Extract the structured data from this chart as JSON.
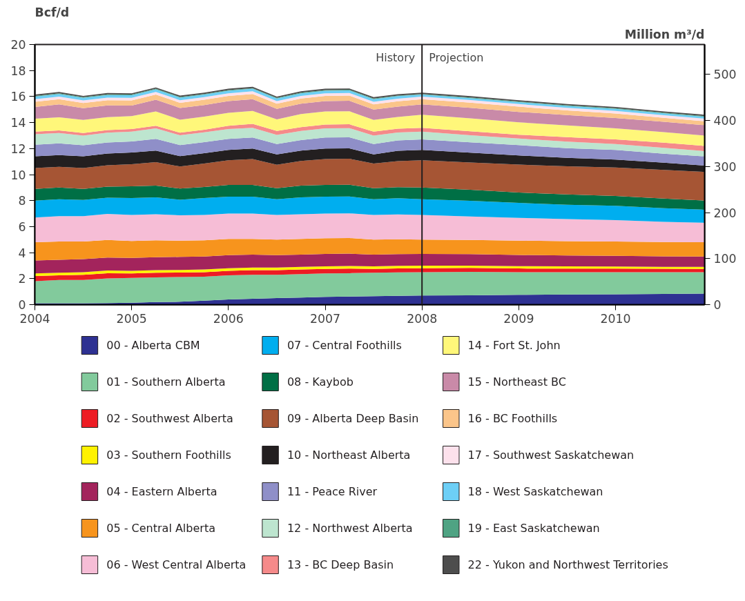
{
  "chart_data": {
    "type": "area",
    "stacked": true,
    "ylabel": "Bcf/d",
    "y2label": "Million m³/d",
    "x": [
      2004,
      2004.25,
      2004.5,
      2004.75,
      2005,
      2005.25,
      2005.5,
      2005.75,
      2006,
      2006.25,
      2006.5,
      2006.75,
      2007,
      2007.25,
      2007.5,
      2007.75,
      2008,
      2008.5,
      2009,
      2009.5,
      2010,
      2010.5,
      2010.92
    ],
    "xlim": [
      2004,
      2010.92
    ],
    "xticks": [
      2004,
      2005,
      2006,
      2007,
      2008,
      2009,
      2010
    ],
    "ylim": [
      0,
      20
    ],
    "yticks": [
      0,
      2,
      4,
      6,
      8,
      10,
      12,
      14,
      16,
      18,
      20
    ],
    "y2lim": [
      0,
      565
    ],
    "y2ticks": [
      0,
      100,
      200,
      300,
      400,
      500
    ],
    "legend": "bottom",
    "ref_lines": [
      {
        "axis": "x",
        "value": 2008,
        "color": "#231f20"
      }
    ],
    "annotations": [
      {
        "text": "History",
        "x": 2008,
        "y": 19
      },
      {
        "text": "Projection",
        "x": 2008,
        "y": 19
      }
    ],
    "series": [
      {
        "name": "00 - Alberta CBM",
        "color": "#2e3192",
        "values": [
          0.1,
          0.1,
          0.1,
          0.12,
          0.15,
          0.2,
          0.22,
          0.3,
          0.4,
          0.45,
          0.5,
          0.55,
          0.6,
          0.62,
          0.65,
          0.68,
          0.7,
          0.72,
          0.75,
          0.78,
          0.8,
          0.82,
          0.85
        ]
      },
      {
        "name": "01 - Southern Alberta",
        "color": "#82ca9c",
        "values": [
          1.7,
          1.8,
          1.8,
          1.9,
          1.9,
          1.9,
          1.9,
          1.85,
          1.85,
          1.85,
          1.8,
          1.8,
          1.8,
          1.8,
          1.8,
          1.8,
          1.8,
          1.8,
          1.75,
          1.72,
          1.7,
          1.68,
          1.65
        ]
      },
      {
        "name": "02 - Southwest Alberta",
        "color": "#ed1c24",
        "values": [
          0.4,
          0.35,
          0.4,
          0.4,
          0.35,
          0.35,
          0.35,
          0.35,
          0.35,
          0.35,
          0.35,
          0.35,
          0.35,
          0.35,
          0.3,
          0.3,
          0.3,
          0.3,
          0.28,
          0.27,
          0.27,
          0.26,
          0.25
        ]
      },
      {
        "name": "03 - Southern Foothills",
        "color": "#fff200",
        "values": [
          0.2,
          0.2,
          0.2,
          0.2,
          0.2,
          0.2,
          0.2,
          0.2,
          0.2,
          0.2,
          0.2,
          0.2,
          0.2,
          0.2,
          0.2,
          0.2,
          0.2,
          0.18,
          0.18,
          0.17,
          0.16,
          0.15,
          0.15
        ]
      },
      {
        "name": "04 - Eastern Alberta",
        "color": "#a3245c",
        "values": [
          1.0,
          1.0,
          1.0,
          1.0,
          1.0,
          1.0,
          1.0,
          1.0,
          1.0,
          1.0,
          0.95,
          0.95,
          0.95,
          0.95,
          0.9,
          0.9,
          0.9,
          0.88,
          0.86,
          0.84,
          0.82,
          0.8,
          0.8
        ]
      },
      {
        "name": "05 - Central Alberta",
        "color": "#f7941d",
        "values": [
          1.4,
          1.4,
          1.35,
          1.35,
          1.3,
          1.3,
          1.25,
          1.25,
          1.25,
          1.2,
          1.2,
          1.2,
          1.2,
          1.2,
          1.15,
          1.15,
          1.1,
          1.1,
          1.1,
          1.1,
          1.1,
          1.1,
          1.1
        ]
      },
      {
        "name": "06 - West Central Alberta",
        "color": "#f6bdd6",
        "values": [
          1.9,
          1.95,
          1.95,
          2.0,
          2.0,
          2.0,
          1.95,
          1.95,
          1.95,
          1.95,
          1.9,
          1.9,
          1.9,
          1.9,
          1.9,
          1.9,
          1.9,
          1.8,
          1.75,
          1.7,
          1.65,
          1.55,
          1.5
        ]
      },
      {
        "name": "07 - Central Foothills",
        "color": "#00aeef",
        "values": [
          1.3,
          1.3,
          1.25,
          1.25,
          1.3,
          1.3,
          1.2,
          1.3,
          1.3,
          1.3,
          1.2,
          1.3,
          1.3,
          1.3,
          1.2,
          1.25,
          1.2,
          1.2,
          1.15,
          1.1,
          1.1,
          1.05,
          1.0
        ]
      },
      {
        "name": "08 - Kaybob",
        "color": "#006f45",
        "values": [
          0.9,
          0.9,
          0.85,
          0.85,
          0.9,
          0.9,
          0.85,
          0.85,
          0.9,
          0.9,
          0.85,
          0.9,
          0.9,
          0.9,
          0.85,
          0.85,
          0.9,
          0.85,
          0.8,
          0.8,
          0.75,
          0.75,
          0.7
        ]
      },
      {
        "name": "09 - Alberta Deep Basin",
        "color": "#a65534",
        "values": [
          1.6,
          1.6,
          1.6,
          1.65,
          1.7,
          1.8,
          1.7,
          1.8,
          1.9,
          2.0,
          1.8,
          1.9,
          2.0,
          2.0,
          1.9,
          2.0,
          2.1,
          2.1,
          2.15,
          2.15,
          2.2,
          2.2,
          2.2
        ]
      },
      {
        "name": "10 - Northeast Alberta",
        "color": "#231f20",
        "values": [
          0.9,
          0.9,
          0.9,
          0.9,
          0.9,
          0.9,
          0.8,
          0.8,
          0.8,
          0.8,
          0.8,
          0.8,
          0.8,
          0.8,
          0.7,
          0.8,
          0.8,
          0.75,
          0.7,
          0.65,
          0.6,
          0.55,
          0.5
        ]
      },
      {
        "name": "11 - Peace River",
        "color": "#8f8fc8",
        "values": [
          0.9,
          0.9,
          0.85,
          0.85,
          0.85,
          0.9,
          0.85,
          0.85,
          0.85,
          0.85,
          0.8,
          0.8,
          0.85,
          0.85,
          0.8,
          0.8,
          0.8,
          0.8,
          0.8,
          0.75,
          0.75,
          0.7,
          0.7
        ]
      },
      {
        "name": "12 - Northwest Alberta",
        "color": "#bde5cf",
        "values": [
          0.8,
          0.8,
          0.75,
          0.75,
          0.75,
          0.8,
          0.75,
          0.75,
          0.75,
          0.75,
          0.7,
          0.7,
          0.7,
          0.7,
          0.65,
          0.6,
          0.6,
          0.55,
          0.5,
          0.5,
          0.45,
          0.45,
          0.4
        ]
      },
      {
        "name": "13 - BC Deep Basin",
        "color": "#f58a8a",
        "values": [
          0.2,
          0.2,
          0.2,
          0.2,
          0.2,
          0.2,
          0.2,
          0.2,
          0.25,
          0.3,
          0.3,
          0.3,
          0.3,
          0.3,
          0.3,
          0.3,
          0.3,
          0.3,
          0.3,
          0.35,
          0.35,
          0.4,
          0.4
        ]
      },
      {
        "name": "14 - Fort St. John",
        "color": "#fff77a",
        "values": [
          1.0,
          1.0,
          1.0,
          1.0,
          1.0,
          1.1,
          1.0,
          1.0,
          1.0,
          1.0,
          0.9,
          1.0,
          1.0,
          1.0,
          0.9,
          0.9,
          1.0,
          1.0,
          0.95,
          0.9,
          0.85,
          0.8,
          0.8
        ]
      },
      {
        "name": "15 - Northeast BC",
        "color": "#c98aa8",
        "values": [
          0.9,
          1.0,
          0.9,
          0.9,
          0.8,
          0.9,
          0.9,
          0.9,
          0.9,
          0.9,
          0.8,
          0.8,
          0.8,
          0.8,
          0.8,
          0.8,
          0.8,
          0.8,
          0.8,
          0.8,
          0.8,
          0.8,
          0.8
        ]
      },
      {
        "name": "16 - BC Foothills",
        "color": "#fbc58a",
        "values": [
          0.4,
          0.4,
          0.4,
          0.4,
          0.4,
          0.4,
          0.4,
          0.4,
          0.4,
          0.4,
          0.4,
          0.4,
          0.4,
          0.4,
          0.4,
          0.4,
          0.4,
          0.4,
          0.4,
          0.35,
          0.35,
          0.3,
          0.3
        ]
      },
      {
        "name": "17 - Southwest Saskatchewan",
        "color": "#fde1ec",
        "values": [
          0.2,
          0.2,
          0.2,
          0.2,
          0.2,
          0.2,
          0.2,
          0.2,
          0.2,
          0.2,
          0.2,
          0.2,
          0.2,
          0.2,
          0.2,
          0.2,
          0.2,
          0.2,
          0.2,
          0.2,
          0.2,
          0.2,
          0.2
        ]
      },
      {
        "name": "18 - West Saskatchewan",
        "color": "#6dcff6",
        "values": [
          0.2,
          0.2,
          0.2,
          0.2,
          0.2,
          0.2,
          0.2,
          0.2,
          0.2,
          0.2,
          0.2,
          0.2,
          0.2,
          0.2,
          0.2,
          0.2,
          0.15,
          0.15,
          0.15,
          0.15,
          0.15,
          0.15,
          0.15
        ]
      },
      {
        "name": "19 - East Saskatchewan",
        "color": "#4fa383",
        "values": [
          0.05,
          0.05,
          0.05,
          0.05,
          0.05,
          0.05,
          0.05,
          0.05,
          0.05,
          0.05,
          0.05,
          0.05,
          0.05,
          0.05,
          0.05,
          0.05,
          0.05,
          0.05,
          0.05,
          0.05,
          0.05,
          0.05,
          0.05
        ]
      },
      {
        "name": "22 - Yukon and Northwest Territories",
        "color": "#4d4d4d",
        "values": [
          0.1,
          0.1,
          0.1,
          0.1,
          0.1,
          0.1,
          0.1,
          0.1,
          0.1,
          0.1,
          0.1,
          0.1,
          0.1,
          0.1,
          0.1,
          0.1,
          0.1,
          0.1,
          0.1,
          0.1,
          0.1,
          0.1,
          0.1
        ]
      }
    ]
  }
}
